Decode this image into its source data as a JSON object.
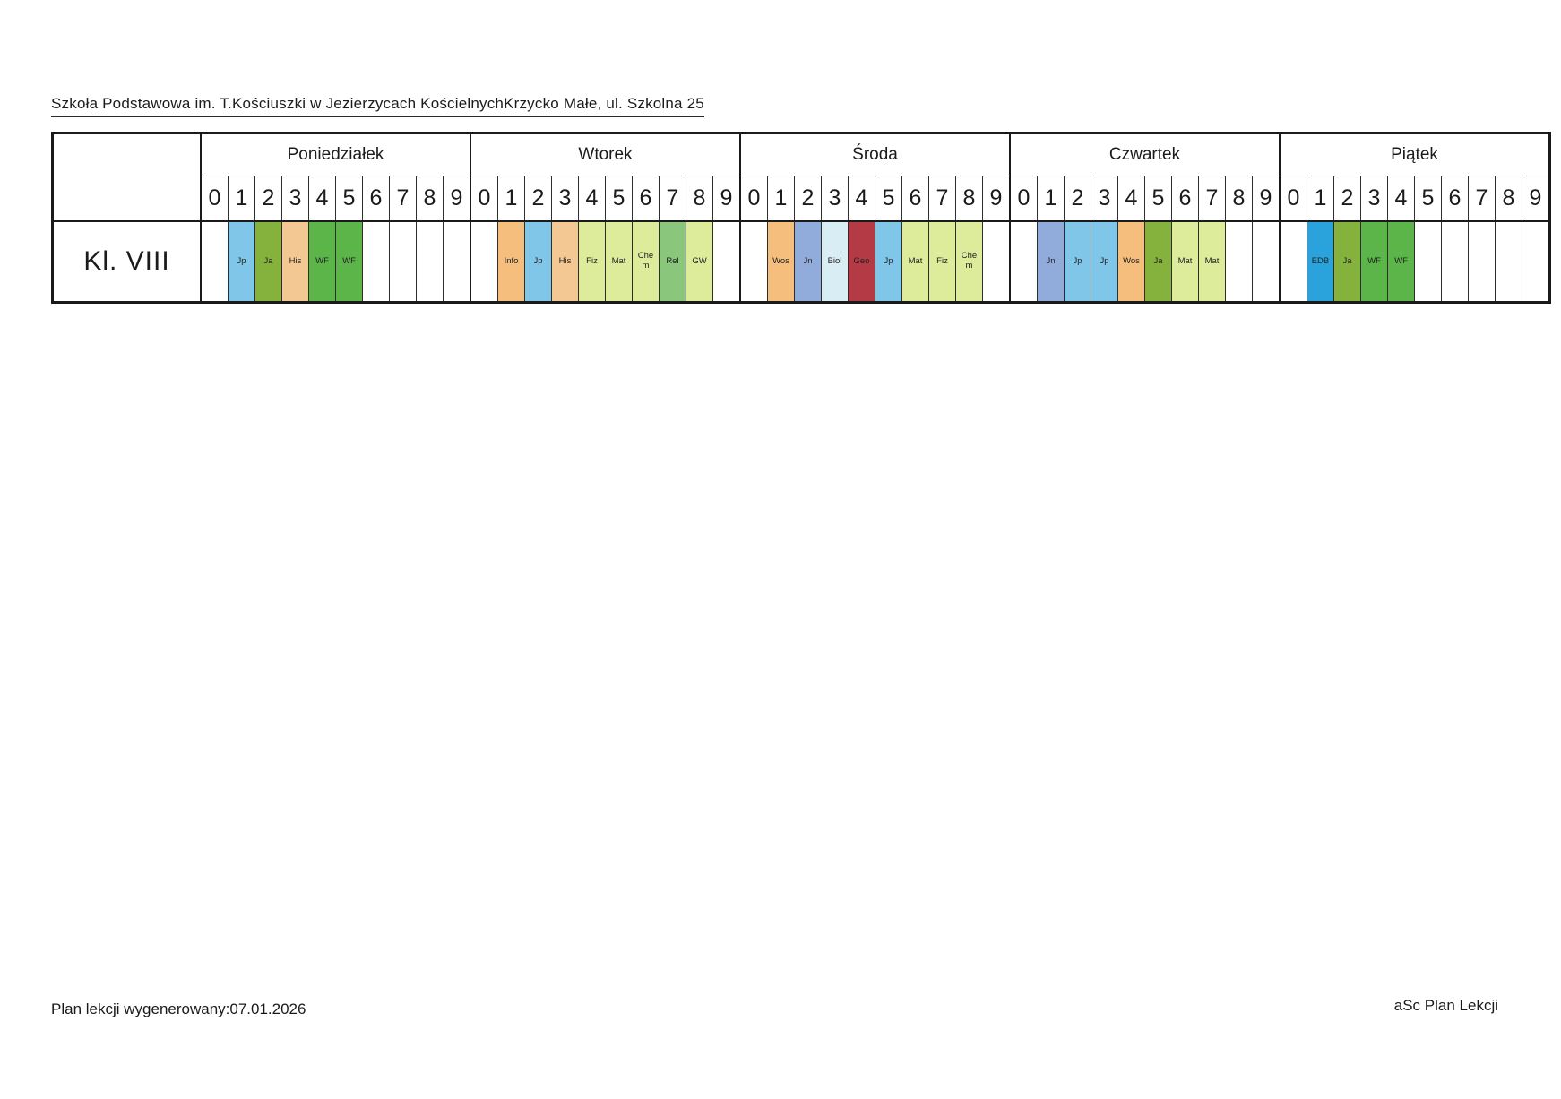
{
  "page": {
    "title": "Szkoła Podstawowa im. T.Kościuszki w Jezierzycach KościelnychKrzycko Małe, ul. Szkolna 25",
    "footer_left": "Plan lekcji wygenerowany:07.01.2026",
    "footer_right": "aSc Plan Lekcji"
  },
  "timetable": {
    "class_label": "Kl. VIII",
    "hours": [
      "0",
      "1",
      "2",
      "3",
      "4",
      "5",
      "6",
      "7",
      "8",
      "9"
    ],
    "subject_colors": {
      "Jp": "#7fc6e8",
      "Ja": "#85b13d",
      "His": "#f4c893",
      "WF": "#5bb549",
      "Info": "#f6be7d",
      "Wos": "#f6be7d",
      "Fiz": "#dcec9b",
      "Mat": "#dcec9b",
      "Chem": "#dcec9b",
      "GW": "#dcec9b",
      "Rel": "#8ac77d",
      "Jn": "#91acdb",
      "Biol": "#d8edf4",
      "Geo": "#b43a46",
      "EDB": "#2aa3dc"
    },
    "days": [
      {
        "name": "Poniedziałek",
        "lessons": [
          null,
          {
            "subject": "Jp",
            "label": "Jp",
            "color": "#7fc6e8"
          },
          {
            "subject": "Ja",
            "label": "Ja",
            "color": "#85b13d"
          },
          {
            "subject": "His",
            "label": "His",
            "color": "#f4c893"
          },
          {
            "subject": "WF",
            "label": "WF",
            "color": "#5bb549"
          },
          {
            "subject": "WF",
            "label": "WF",
            "color": "#5bb549"
          },
          null,
          null,
          null,
          null
        ]
      },
      {
        "name": "Wtorek",
        "lessons": [
          null,
          {
            "subject": "Info",
            "label": "Info",
            "color": "#f6be7d"
          },
          {
            "subject": "Jp",
            "label": "Jp",
            "color": "#7fc6e8"
          },
          {
            "subject": "His",
            "label": "His",
            "color": "#f4c893"
          },
          {
            "subject": "Fiz",
            "label": "Fiz",
            "color": "#dcec9b"
          },
          {
            "subject": "Mat",
            "label": "Mat",
            "color": "#dcec9b"
          },
          {
            "subject": "Chem",
            "label": "Che\nm",
            "color": "#dcec9b"
          },
          {
            "subject": "Rel",
            "label": "Rel",
            "color": "#8ac77d"
          },
          {
            "subject": "GW",
            "label": "GW",
            "color": "#dcec9b"
          },
          null
        ]
      },
      {
        "name": "Środa",
        "lessons": [
          null,
          {
            "subject": "Wos",
            "label": "Wos",
            "color": "#f6be7d"
          },
          {
            "subject": "Jn",
            "label": "Jn",
            "color": "#91acdb"
          },
          {
            "subject": "Biol",
            "label": "Biol",
            "color": "#d8edf4"
          },
          {
            "subject": "Geo",
            "label": "Geo",
            "color": "#b43a46"
          },
          {
            "subject": "Jp",
            "label": "Jp",
            "color": "#7fc6e8"
          },
          {
            "subject": "Mat",
            "label": "Mat",
            "color": "#dcec9b"
          },
          {
            "subject": "Fiz",
            "label": "Fiz",
            "color": "#dcec9b"
          },
          {
            "subject": "Chem",
            "label": "Che\nm",
            "color": "#dcec9b"
          },
          null
        ]
      },
      {
        "name": "Czwartek",
        "lessons": [
          null,
          {
            "subject": "Jn",
            "label": "Jn",
            "color": "#91acdb"
          },
          {
            "subject": "Jp",
            "label": "Jp",
            "color": "#7fc6e8"
          },
          {
            "subject": "Jp",
            "label": "Jp",
            "color": "#7fc6e8"
          },
          {
            "subject": "Wos",
            "label": "Wos",
            "color": "#f6be7d"
          },
          {
            "subject": "Ja",
            "label": "Ja",
            "color": "#85b13d"
          },
          {
            "subject": "Mat",
            "label": "Mat",
            "color": "#dcec9b"
          },
          {
            "subject": "Mat",
            "label": "Mat",
            "color": "#dcec9b"
          },
          null,
          null
        ]
      },
      {
        "name": "Piątek",
        "lessons": [
          null,
          {
            "subject": "EDB",
            "label": "EDB",
            "color": "#2aa3dc"
          },
          {
            "subject": "Ja",
            "label": "Ja",
            "color": "#85b13d"
          },
          {
            "subject": "WF",
            "label": "WF",
            "color": "#5bb549"
          },
          {
            "subject": "WF",
            "label": "WF",
            "color": "#5bb549"
          },
          null,
          null,
          null,
          null,
          null
        ]
      }
    ]
  }
}
